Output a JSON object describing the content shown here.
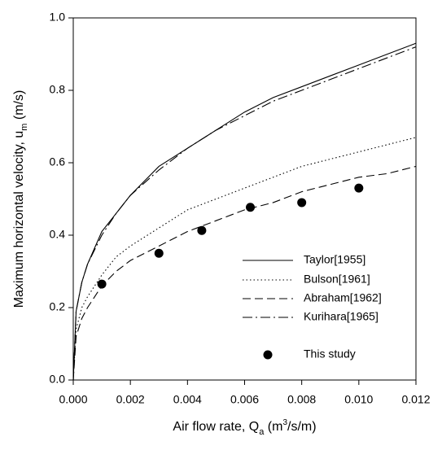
{
  "chart_data": {
    "type": "line",
    "xlabel": [
      {
        "text": "Air flow rate, Q"
      },
      {
        "text": "a",
        "shift": "sub"
      },
      {
        "text": " (m"
      },
      {
        "text": "3",
        "shift": "super"
      },
      {
        "text": "/s/m)"
      }
    ],
    "ylabel": [
      {
        "text": "Maximum horizontal velocity, u"
      },
      {
        "text": "m",
        "shift": "sub"
      },
      {
        "text": " (m/s)"
      }
    ],
    "xlim": [
      0,
      0.012
    ],
    "ylim": [
      0,
      1
    ],
    "xticks": [
      {
        "value": 0,
        "label": "0.000"
      },
      {
        "value": 0.002,
        "label": "0.002"
      },
      {
        "value": 0.004,
        "label": "0.004"
      },
      {
        "value": 0.006,
        "label": "0.006"
      },
      {
        "value": 0.008,
        "label": "0.008"
      },
      {
        "value": 0.01,
        "label": "0.010"
      },
      {
        "value": 0.012,
        "label": "0.012"
      }
    ],
    "yticks": [
      {
        "value": 0,
        "label": "0.0"
      },
      0.2,
      0.4,
      0.6,
      0.8,
      {
        "value": 1,
        "label": "1.0"
      }
    ],
    "grid": false,
    "legend": "lower right",
    "x": [
      0,
      0.0001,
      0.0003,
      0.0005,
      0.001,
      0.0015,
      0.002,
      0.003,
      0.004,
      0.005,
      0.006,
      0.007,
      0.008,
      0.009,
      0.01,
      0.011,
      0.012
    ],
    "series": [
      {
        "name": "Taylor[1955]",
        "color": "#000000",
        "dash": "solid",
        "values": [
          0,
          0.19,
          0.27,
          0.32,
          0.41,
          0.46,
          0.51,
          0.59,
          0.64,
          0.69,
          0.74,
          0.78,
          0.81,
          0.84,
          0.87,
          0.9,
          0.93
        ]
      },
      {
        "name": "Bulson[1961]",
        "color": "#000000",
        "dash": "dotted",
        "values": [
          0,
          0.14,
          0.2,
          0.23,
          0.29,
          0.34,
          0.37,
          0.42,
          0.47,
          0.5,
          0.53,
          0.56,
          0.59,
          0.61,
          0.63,
          0.65,
          0.67
        ]
      },
      {
        "name": "Abraham[1962]",
        "color": "#000000",
        "dash": "dashed",
        "values": [
          0,
          0.12,
          0.17,
          0.2,
          0.26,
          0.3,
          0.33,
          0.37,
          0.41,
          0.44,
          0.47,
          0.49,
          0.52,
          0.54,
          0.56,
          0.57,
          0.59
        ]
      },
      {
        "name": "Kurihara[1965]",
        "color": "#000000",
        "dash": "dashdot",
        "values": [
          0,
          0.19,
          0.27,
          0.32,
          0.4,
          0.46,
          0.51,
          0.58,
          0.64,
          0.69,
          0.73,
          0.77,
          0.8,
          0.83,
          0.86,
          0.89,
          0.92
        ]
      }
    ],
    "scatter": {
      "name": "This study",
      "color": "#000000",
      "x": [
        0.001,
        0.003,
        0.0045,
        0.0062,
        0.008,
        0.01
      ],
      "values": [
        0.265,
        0.35,
        0.413,
        0.477,
        0.49,
        0.53
      ]
    }
  }
}
